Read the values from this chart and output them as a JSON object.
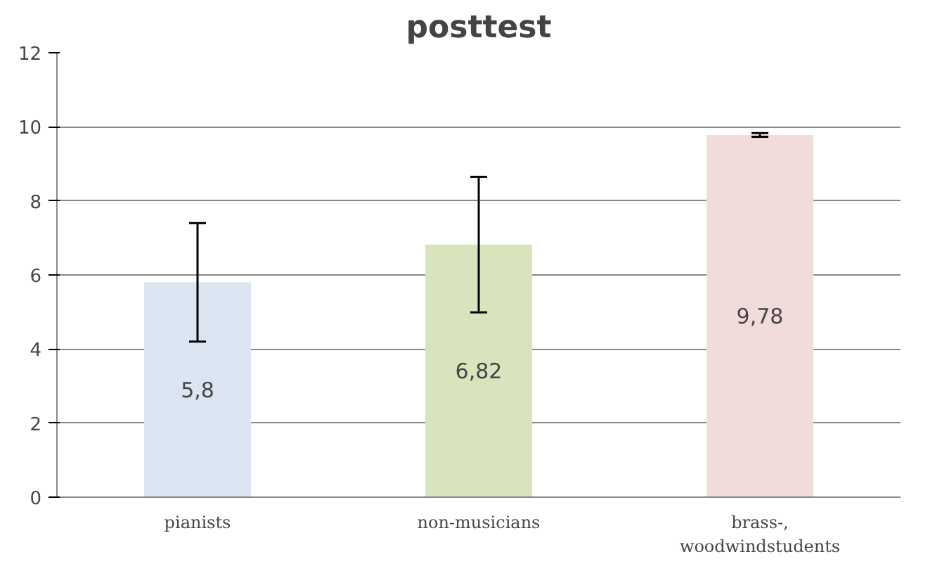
{
  "chart_data": {
    "type": "bar",
    "title": "posttest",
    "categories": [
      "pianists",
      "non-musicians",
      "brass-,\nwoodwindstudents"
    ],
    "values": [
      5.8,
      6.82,
      9.78
    ],
    "colors": [
      "#dce6f2",
      "#d7e4bd",
      "#f2dcdb"
    ],
    "errors": [
      1.6,
      1.83,
      0.05
    ],
    "value_labels": [
      "5,8",
      "6,82",
      "9,78"
    ],
    "ylim": [
      0,
      12
    ],
    "yticks": [
      0,
      2,
      4,
      6,
      8,
      10,
      12
    ],
    "grid": "y"
  }
}
